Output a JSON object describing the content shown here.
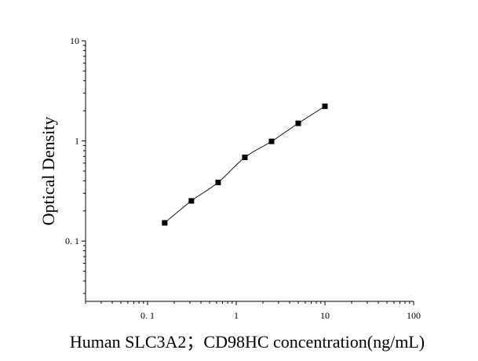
{
  "chart_data": {
    "type": "scatter",
    "x_scale": "log",
    "y_scale": "log",
    "xlim": [
      0.02,
      100
    ],
    "ylim": [
      0.025,
      10
    ],
    "xlabel": "Human SLC3A2；CD98HC concentration(ng/mL)",
    "ylabel": "Optical Density",
    "x_ticks": [
      {
        "value": 0.1,
        "label": "0. 1"
      },
      {
        "value": 1,
        "label": "1"
      },
      {
        "value": 10,
        "label": "10"
      },
      {
        "value": 100,
        "label": "100"
      }
    ],
    "y_ticks": [
      {
        "value": 0.1,
        "label": "0. 1"
      },
      {
        "value": 1,
        "label": "1"
      },
      {
        "value": 10,
        "label": "10"
      }
    ],
    "grid": false,
    "series": [
      {
        "marker": "square",
        "fit_line": true,
        "x": [
          0.156,
          0.312,
          0.625,
          1.25,
          2.5,
          5,
          10
        ],
        "y": [
          0.152,
          0.252,
          0.385,
          0.685,
          0.99,
          1.5,
          2.22
        ]
      }
    ],
    "colors": {
      "marker": "#000000",
      "line": "#000000",
      "axis": "#000000"
    }
  }
}
